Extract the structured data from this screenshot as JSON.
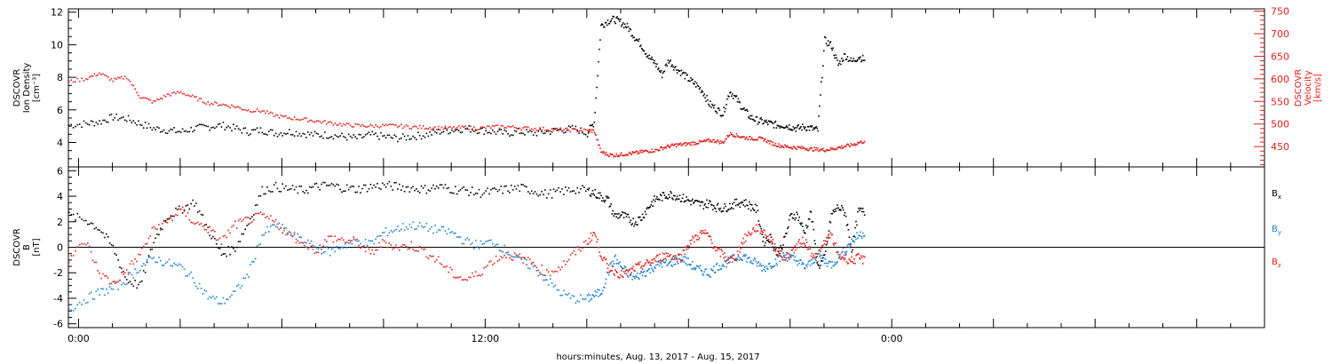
{
  "chart_data": [
    {
      "type": "scatter",
      "panel": "top",
      "left_axis": {
        "label_lines": [
          "DSCOVR",
          "Ion Density",
          "[cm⁻³]"
        ],
        "ylim": [
          2.5,
          12.2
        ],
        "ticks": [
          4,
          6,
          8,
          10,
          12
        ],
        "color": "#000000"
      },
      "right_axis": {
        "label_lines": [
          "DSCOVR",
          "Velocity",
          "[km/s]"
        ],
        "ylim": [
          405,
          755
        ],
        "ticks": [
          450,
          500,
          550,
          600,
          650,
          700,
          750
        ],
        "color": "#e0201b"
      },
      "series": [
        {
          "axis": "left",
          "color": "#000000",
          "x": [
            -0.3,
            0.2,
            0.6,
            1,
            1.4,
            1.8,
            2.2,
            2.6,
            3,
            3.4,
            3.8,
            4.2,
            4.6,
            5,
            5.4,
            5.8,
            6.2,
            6.6,
            7,
            7.4,
            7.8,
            8.2,
            8.6,
            9,
            9.4,
            9.8,
            10.2,
            10.6,
            11,
            11.4,
            11.8,
            12.2,
            12.6,
            13,
            13.4,
            13.8,
            14.2,
            14.6,
            15,
            15.2,
            15.4,
            15.6,
            15.8,
            16,
            16.2,
            16.4,
            16.6,
            16.8,
            17,
            17.2,
            17.4,
            17.6,
            17.8,
            18,
            18.2,
            18.4,
            18.6,
            18.8,
            19,
            19.2,
            19.4,
            19.6,
            19.8,
            20,
            20.2,
            20.4,
            20.6,
            20.8,
            21,
            21.2,
            21.4,
            21.6,
            21.8,
            22,
            22.2,
            22.4,
            22.6,
            22.8,
            23,
            23.2
          ],
          "y": [
            5.1,
            5.2,
            5.3,
            5.6,
            5.5,
            5.2,
            4.9,
            4.8,
            4.7,
            4.9,
            5,
            5.1,
            4.9,
            4.7,
            4.8,
            4.6,
            4.7,
            4.6,
            4.5,
            4.5,
            4.4,
            4.3,
            4.5,
            4.4,
            4.3,
            4.4,
            4.5,
            4.7,
            4.8,
            4.9,
            4.8,
            4.7,
            4.6,
            4.7,
            4.6,
            4.7,
            4.8,
            4.9,
            4.6,
            5.3,
            11.2,
            11.5,
            11.6,
            11.4,
            11.1,
            10.5,
            10,
            9.3,
            8.9,
            8.2,
            9.1,
            8.6,
            8.3,
            7.9,
            7.6,
            7.2,
            6.4,
            6.1,
            5.8,
            7.2,
            6.7,
            6.1,
            5.6,
            5.4,
            5.3,
            5.2,
            5.1,
            5.1,
            5,
            4.9,
            5,
            4.9,
            4.8,
            10.3,
            10,
            8.8,
            9.4,
            9,
            9.3,
            9.1
          ]
        },
        {
          "axis": "right",
          "color": "#e0201b",
          "x": [
            -0.3,
            0.2,
            0.6,
            1,
            1.4,
            1.8,
            2.2,
            2.6,
            3,
            3.4,
            3.8,
            4.2,
            4.6,
            5,
            5.4,
            5.8,
            6.2,
            6.6,
            7,
            7.4,
            7.8,
            8.2,
            8.6,
            9,
            9.4,
            9.8,
            10.2,
            10.6,
            11,
            11.4,
            11.8,
            12.2,
            12.6,
            13,
            13.4,
            13.8,
            14.2,
            14.6,
            15,
            15.2,
            15.4,
            15.6,
            15.8,
            16,
            16.2,
            16.4,
            16.6,
            16.8,
            17,
            17.2,
            17.4,
            17.6,
            17.8,
            18,
            18.2,
            18.4,
            18.6,
            18.8,
            19,
            19.2,
            19.4,
            19.6,
            19.8,
            20,
            20.2,
            20.4,
            20.6,
            20.8,
            21,
            21.2,
            21.4,
            21.6,
            21.8,
            22,
            22.2,
            22.4,
            22.6,
            22.8,
            23,
            23.2
          ],
          "y": [
            595,
            602,
            614,
            598,
            606,
            562,
            550,
            566,
            572,
            560,
            548,
            545,
            540,
            532,
            530,
            520,
            515,
            512,
            508,
            504,
            500,
            498,
            497,
            498,
            497,
            495,
            494,
            493,
            492,
            494,
            492,
            495,
            496,
            493,
            491,
            490,
            489,
            488,
            487,
            486,
            440,
            434,
            432,
            434,
            436,
            437,
            440,
            442,
            443,
            448,
            452,
            455,
            456,
            458,
            460,
            462,
            465,
            464,
            460,
            480,
            476,
            472,
            470,
            469,
            468,
            460,
            455,
            452,
            450,
            449,
            448,
            446,
            445,
            444,
            446,
            449,
            452,
            455,
            460,
            464
          ]
        }
      ]
    },
    {
      "type": "scatter",
      "panel": "bottom",
      "left_axis": {
        "label_lines": [
          "DSCOVR",
          "B",
          "[nT]"
        ],
        "ylim": [
          -6.3,
          6.3
        ],
        "ticks": [
          -6,
          -4,
          -2,
          0,
          2,
          4,
          6
        ]
      },
      "zero_line": true,
      "series": [
        {
          "name": "Bx",
          "color": "#000000",
          "x": [
            -0.3,
            0.2,
            0.6,
            1,
            1.4,
            1.8,
            2.2,
            2.6,
            3,
            3.4,
            3.8,
            4.2,
            4.6,
            5,
            5.4,
            5.8,
            6.2,
            6.6,
            7,
            7.4,
            7.8,
            8.2,
            8.6,
            9,
            9.4,
            9.8,
            10.2,
            10.6,
            11,
            11.4,
            11.8,
            12.2,
            12.6,
            13,
            13.4,
            13.8,
            14.2,
            14.6,
            15,
            15.2,
            15.4,
            15.6,
            15.8,
            16,
            16.2,
            16.4,
            16.6,
            16.8,
            17,
            17.2,
            17.4,
            17.6,
            17.8,
            18,
            18.2,
            18.4,
            18.6,
            18.8,
            19,
            19.2,
            19.4,
            19.6,
            19.8,
            20,
            20.2,
            20.4,
            20.6,
            20.8,
            21,
            21.2,
            21.4,
            21.6,
            21.8,
            22,
            22.2,
            22.4,
            22.6,
            22.8,
            23,
            23.2
          ],
          "y": [
            2.5,
            2.2,
            1.5,
            0,
            -2.5,
            -3,
            0.5,
            2.5,
            3,
            3.6,
            1.5,
            -0.5,
            0,
            2,
            4.5,
            4.8,
            4.6,
            4.5,
            4.8,
            4.9,
            4.7,
            4.6,
            4.8,
            4.9,
            4.8,
            4.7,
            4.6,
            4.8,
            4.6,
            4.5,
            4.3,
            4.4,
            4.6,
            4.7,
            4.5,
            4.2,
            4.4,
            4.6,
            4.5,
            4.3,
            4.0,
            3.8,
            2.5,
            2.6,
            2.3,
            2.0,
            2.4,
            3.2,
            3.8,
            4.0,
            4.2,
            4.1,
            3.9,
            3.7,
            3.5,
            3.4,
            3.5,
            3.2,
            3.1,
            3.3,
            3.5,
            3.6,
            3.3,
            3.0,
            0.5,
            0.8,
            -0.5,
            0.5,
            2.5,
            2.6,
            1.2,
            2.8,
            -1.5,
            -0.8,
            2.6,
            3.2,
            2.8,
            -0.2,
            2.9,
            2.8
          ]
        },
        {
          "name": "By",
          "color": "#1a7fd1",
          "x": [
            -0.3,
            0.2,
            0.6,
            1,
            1.4,
            1.8,
            2.2,
            2.6,
            3,
            3.4,
            3.8,
            4.2,
            4.6,
            5,
            5.4,
            5.8,
            6.2,
            6.6,
            7,
            7.4,
            7.8,
            8.2,
            8.6,
            9,
            9.4,
            9.8,
            10.2,
            10.6,
            11,
            11.4,
            11.8,
            12.2,
            12.6,
            13,
            13.4,
            13.8,
            14.2,
            14.6,
            15,
            15.2,
            15.4,
            15.6,
            15.8,
            16,
            16.2,
            16.4,
            16.6,
            16.8,
            17,
            17.2,
            17.4,
            17.6,
            17.8,
            18,
            18.2,
            18.4,
            18.6,
            18.8,
            19,
            19.2,
            19.4,
            19.6,
            19.8,
            20,
            20.2,
            20.4,
            20.6,
            20.8,
            21,
            21.2,
            21.4,
            21.6,
            21.8,
            22,
            22.2,
            22.4,
            22.6,
            22.8,
            23,
            23.2
          ],
          "y": [
            -4.8,
            -4,
            -3.5,
            -3.2,
            -2.5,
            -1.5,
            -0.8,
            -1.2,
            -1.5,
            -2.5,
            -3.8,
            -4.3,
            -3.5,
            -2,
            1,
            1.8,
            1.2,
            0.5,
            0,
            -0.3,
            0.2,
            0.5,
            0.3,
            1.2,
            1.5,
            1.8,
            1.6,
            1.4,
            1.2,
            0.5,
            0.2,
            0.5,
            -0.2,
            -1,
            -1.5,
            -2.5,
            -3.5,
            -4,
            -4,
            -3.7,
            -3.5,
            -2,
            -0.8,
            -1.5,
            -2,
            -2.4,
            -2,
            -1.8,
            -1.4,
            -1.2,
            -1.3,
            -1.0,
            -0.8,
            -1.2,
            -1.6,
            -1.8,
            -2.0,
            -1.5,
            -1.3,
            -1.0,
            -0.8,
            -0.6,
            -1.0,
            -1.2,
            -1.6,
            -1.3,
            -1.0,
            -0.6,
            -0.8,
            -1.0,
            -1.5,
            -1.2,
            -0.5,
            -1.0,
            -1.3,
            -0.8,
            -0.2,
            0.5,
            1.0,
            1.2
          ]
        },
        {
          "name": "Bz",
          "color": "#e0201b",
          "x": [
            -0.3,
            0.2,
            0.6,
            1,
            1.4,
            1.8,
            2.2,
            2.6,
            3,
            3.4,
            3.8,
            4.2,
            4.6,
            5,
            5.4,
            5.8,
            6.2,
            6.6,
            7,
            7.4,
            7.8,
            8.2,
            8.6,
            9,
            9.4,
            9.8,
            10.2,
            10.6,
            11,
            11.4,
            11.8,
            12.2,
            12.6,
            13,
            13.4,
            13.8,
            14.2,
            14.6,
            15,
            15.2,
            15.4,
            15.6,
            15.8,
            16,
            16.2,
            16.4,
            16.6,
            16.8,
            17,
            17.2,
            17.4,
            17.6,
            17.8,
            18,
            18.2,
            18.4,
            18.6,
            18.8,
            19,
            19.2,
            19.4,
            19.6,
            19.8,
            20,
            20.2,
            20.4,
            20.6,
            20.8,
            21,
            21.2,
            21.4,
            21.6,
            21.8,
            22,
            22.2,
            22.4,
            22.6,
            22.8,
            23,
            23.2
          ],
          "y": [
            -0.8,
            0.5,
            -2,
            -2.8,
            -1.8,
            -0.5,
            1.5,
            2,
            3,
            2,
            1.5,
            0.5,
            1.8,
            2.2,
            2.5,
            2,
            1,
            0.5,
            -0.2,
            0.8,
            0.6,
            0.5,
            -0.5,
            0.5,
            0,
            0.2,
            -0.3,
            -1,
            -2,
            -2.5,
            -2,
            -1,
            -0.5,
            -0.8,
            -1.2,
            -2,
            -1.5,
            -0.5,
            0.5,
            1.2,
            -0.5,
            -1.5,
            -1.8,
            -2.1,
            -2.0,
            -1.6,
            -1.4,
            -1.2,
            -0.9,
            -0.7,
            -0.5,
            -0.8,
            -0.6,
            0.4,
            0.8,
            1.2,
            0.9,
            -0.2,
            -0.5,
            -1.0,
            -0.6,
            0.6,
            1.2,
            1.6,
            1.3,
            0.7,
            -0.2,
            -0.8,
            -0.4,
            0.2,
            0.6,
            -0.3,
            -0.8,
            0.5,
            1.0,
            -0.6,
            -0.8,
            -1.0,
            -0.8,
            -1.0
          ]
        }
      ]
    }
  ],
  "x_axis": {
    "domain_hours": [
      -0.3,
      35
    ],
    "tick_labels": [
      {
        "hour": 0,
        "text": "0:00"
      },
      {
        "hour": 12,
        "text": "12:00"
      },
      {
        "hour": 24,
        "text": "0:00"
      }
    ],
    "minor_every_hours": 1,
    "label": "hours:minutes, Aug. 13, 2017 - Aug. 15, 2017"
  },
  "legend": [
    {
      "letter": "B",
      "sub": "x",
      "color": "#000000"
    },
    {
      "letter": "B",
      "sub": "y",
      "color": "#1a7fd1"
    },
    {
      "letter": "B",
      "sub": "z",
      "color": "#e0201b"
    }
  ]
}
